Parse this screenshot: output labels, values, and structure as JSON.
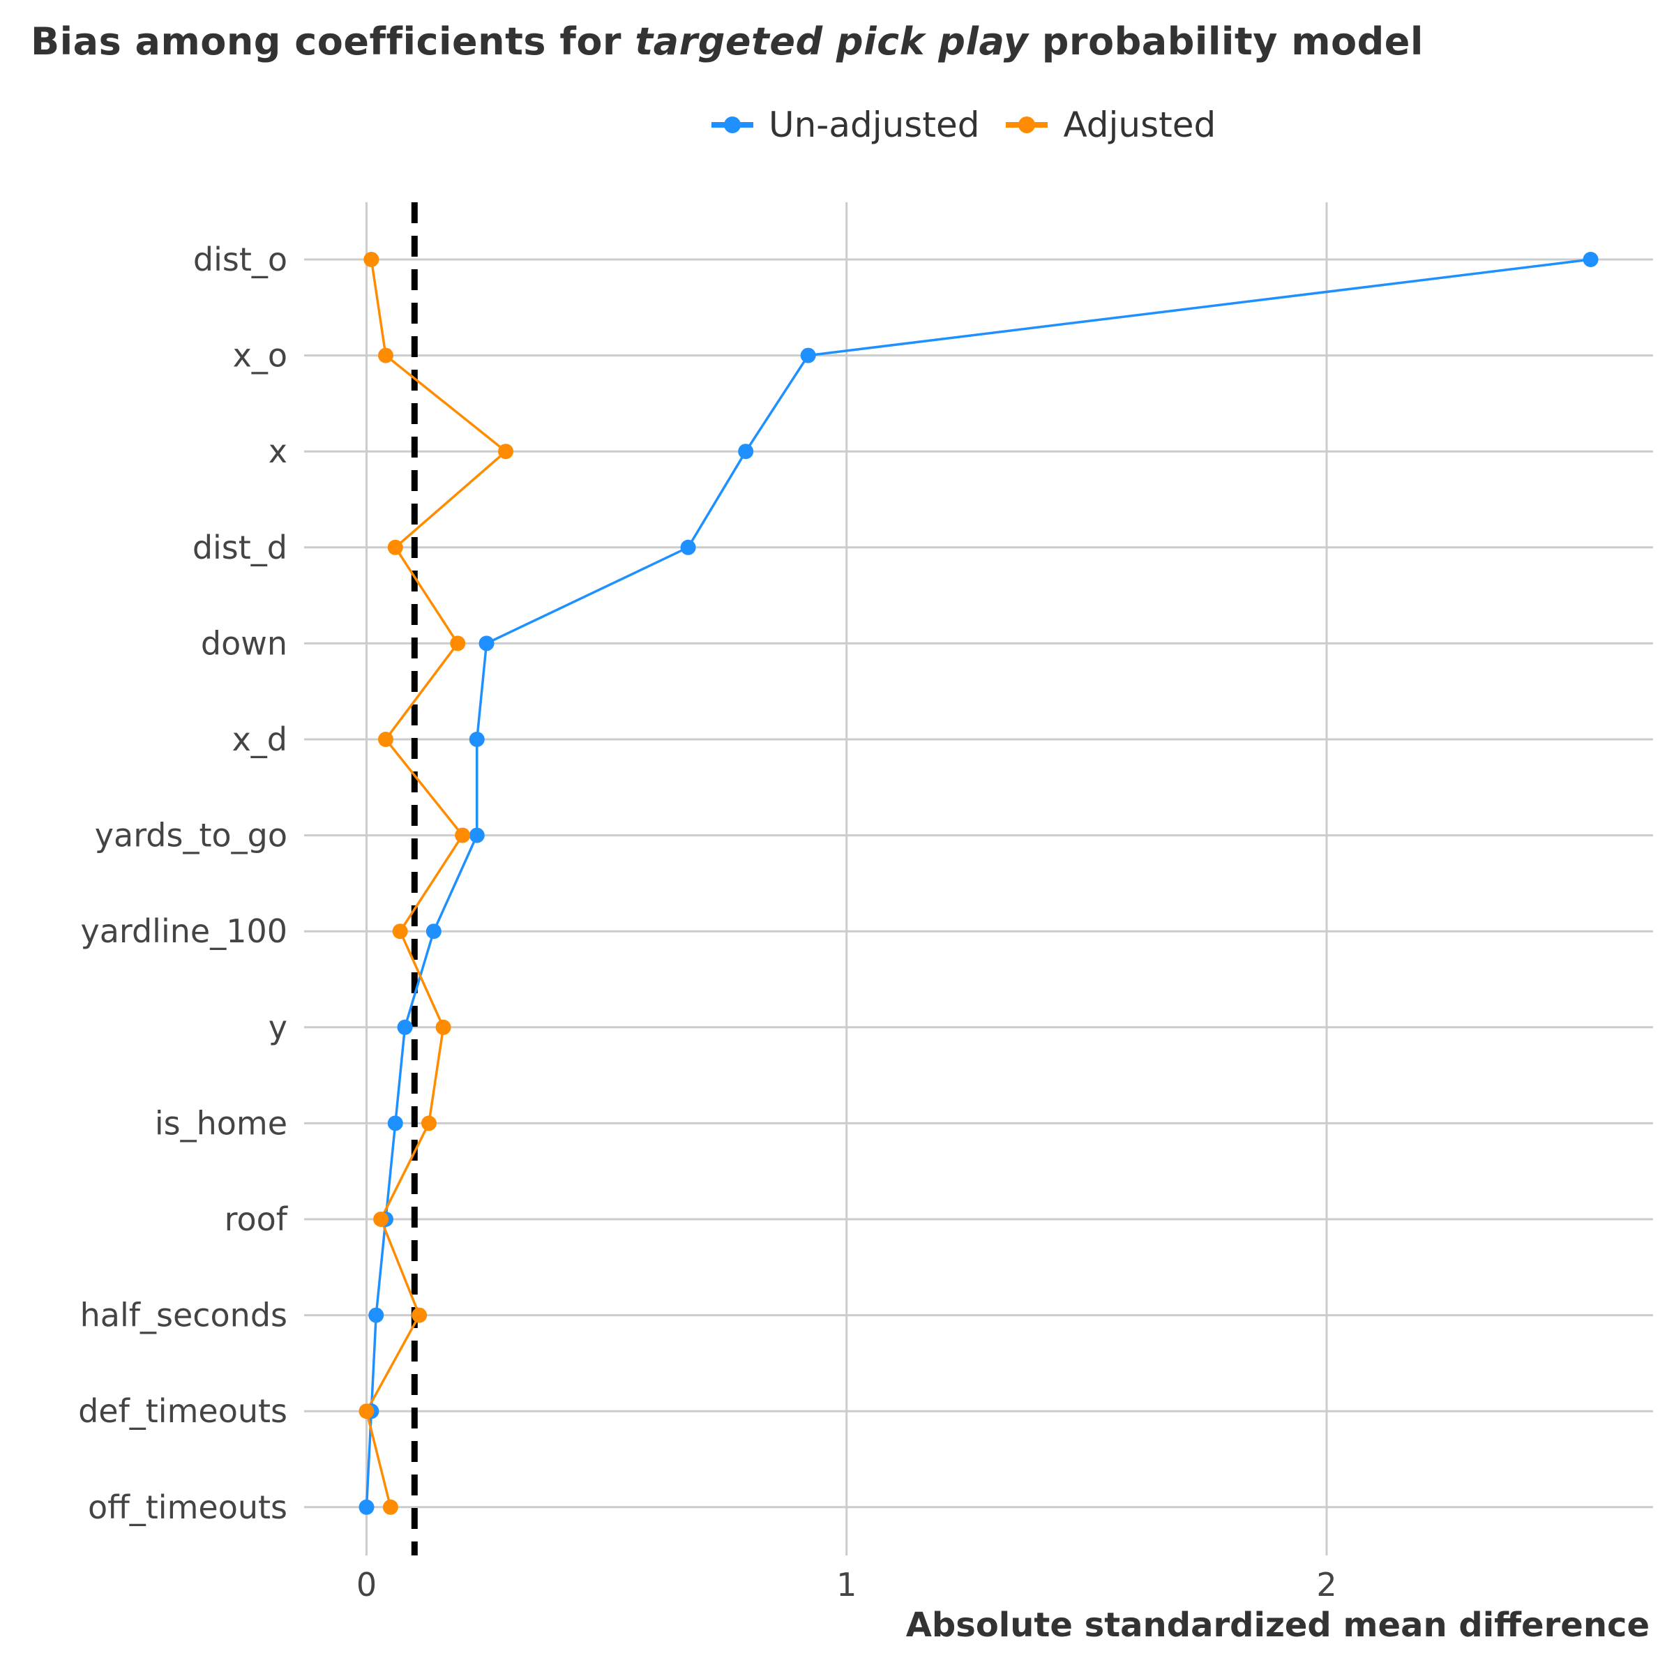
{
  "chart_data": {
    "type": "line",
    "title_pre": "Bias among coefficients for ",
    "title_em": "targeted pick play",
    "title_post": " probability model",
    "xlabel": "Absolute standardized mean difference",
    "ylabel": "",
    "xlim": [
      -0.13,
      2.68
    ],
    "x_ticks": [
      0,
      1,
      2
    ],
    "threshold": 0.1,
    "categories": [
      "dist_o",
      "x_o",
      "x",
      "dist_d",
      "down",
      "x_d",
      "yards_to_go",
      "yardline_100",
      "y",
      "is_home",
      "roof",
      "half_seconds",
      "def_timeouts",
      "off_timeouts"
    ],
    "series": [
      {
        "name": "Un-adjusted",
        "color": "#1E90FF",
        "values": [
          2.55,
          0.92,
          0.79,
          0.67,
          0.25,
          0.23,
          0.23,
          0.14,
          0.08,
          0.06,
          0.04,
          0.02,
          0.01,
          0.0
        ]
      },
      {
        "name": "Adjusted",
        "color": "#FF8C00",
        "values": [
          0.01,
          0.04,
          0.29,
          0.06,
          0.19,
          0.04,
          0.2,
          0.07,
          0.16,
          0.13,
          0.03,
          0.11,
          0.0,
          0.05
        ]
      }
    ],
    "grid": true,
    "legend_position": "top"
  }
}
